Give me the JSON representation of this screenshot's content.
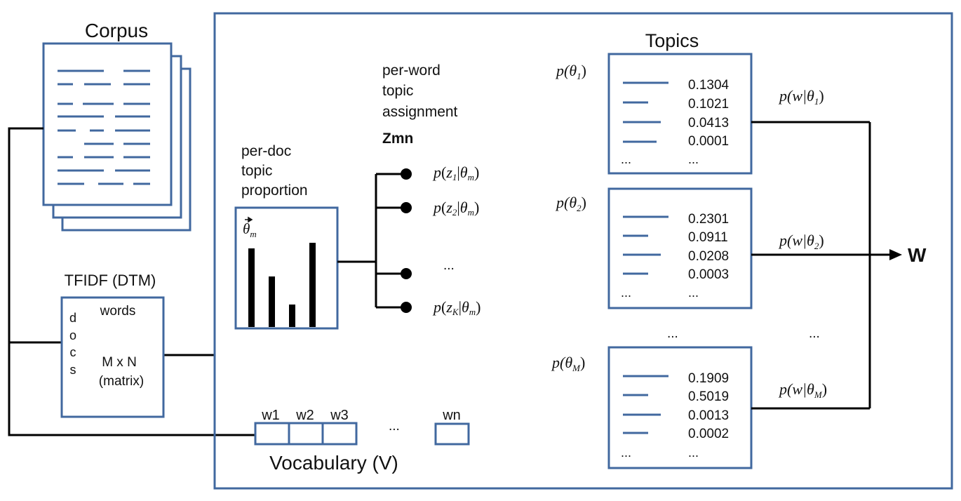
{
  "corpus": {
    "title": "Corpus"
  },
  "tfidf": {
    "title": "TFIDF (DTM)",
    "words_label": "words",
    "docs_label": [
      "d",
      "o",
      "c",
      "s"
    ],
    "dims": "M x N",
    "matrix": "(matrix)"
  },
  "doc_topic": {
    "label_lines": [
      "per-doc",
      "topic",
      "proportion"
    ],
    "symbol": "θ",
    "symbol_sub": "m",
    "bars": [
      0.7,
      0.45,
      0.2,
      0.75
    ]
  },
  "word_topic": {
    "label_lines": [
      "per-word",
      "topic",
      "assignment"
    ],
    "zmn": "Zmn",
    "assignments": [
      {
        "p": "p",
        "z": "z",
        "sub": "1",
        "theta": "θ",
        "theta_sub": "m"
      },
      {
        "p": "p",
        "z": "z",
        "sub": "2",
        "theta": "θ",
        "theta_sub": "m"
      },
      {
        "ellipsis": "..."
      },
      {
        "p": "p",
        "z": "z",
        "sub": "K",
        "theta": "θ",
        "theta_sub": "m"
      }
    ]
  },
  "topics": {
    "title": "Topics",
    "items": [
      {
        "label": "p(θ",
        "sub": "1",
        "values": [
          "0.1304",
          "0.1021",
          "0.0413",
          "0.0001"
        ],
        "more": "...",
        "out_label": "p(w|θ",
        "out_sub": "1"
      },
      {
        "label": "p(θ",
        "sub": "2",
        "values": [
          "0.2301",
          "0.0911",
          "0.0208",
          "0.0003"
        ],
        "more": "...",
        "out_label": "p(w|θ",
        "out_sub": "2"
      },
      {
        "label": "p(θ",
        "sub": "M",
        "values": [
          "0.1909",
          "0.5019",
          "0.0013",
          "0.0002"
        ],
        "more": "...",
        "out_label": "p(w|θ",
        "out_sub": "M"
      }
    ],
    "between": "...",
    "output": "W"
  },
  "vocabulary": {
    "title": "Vocabulary (V)",
    "cells": [
      "w1",
      "w2",
      "w3"
    ],
    "ellipsis": "...",
    "last": "wn"
  },
  "colors": {
    "box": "#41689f",
    "line": "#000000"
  }
}
